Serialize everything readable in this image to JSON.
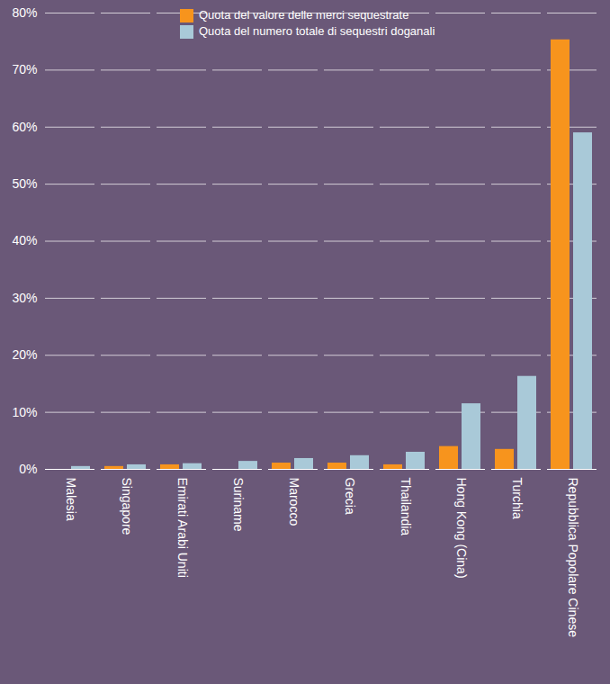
{
  "chart_data": {
    "type": "bar",
    "categories": [
      "Malesia",
      "Singapore",
      "Emirati Arabi Uniti",
      "Suriname",
      "Marocco",
      "Grecia",
      "Thailandia",
      "Hong Kong (Cina)",
      "Turchia",
      "Repubblica Popolare Cinese"
    ],
    "series": [
      {
        "name": "Quota del valore delle merci sequestrate",
        "color": "#f7941d",
        "values": [
          0,
          0.5,
          0.8,
          0,
          1.1,
          1.1,
          0.8,
          4.0,
          3.5,
          75.3
        ]
      },
      {
        "name": "Quota del numero totale di sequestri doganali",
        "color": "#a9c9d8",
        "values": [
          0.5,
          0.8,
          1.0,
          1.4,
          1.9,
          2.4,
          3.0,
          11.5,
          16.3,
          59.0
        ]
      }
    ],
    "ylim": [
      0,
      80
    ],
    "yticks": [
      {
        "value": 0,
        "label": "0%"
      },
      {
        "value": 10,
        "label": "10%"
      },
      {
        "value": 20,
        "label": "20%"
      },
      {
        "value": 30,
        "label": "30%"
      },
      {
        "value": 40,
        "label": "40%"
      },
      {
        "value": 50,
        "label": "50%"
      },
      {
        "value": 60,
        "label": "60%"
      },
      {
        "value": 70,
        "label": "70%"
      },
      {
        "value": 80,
        "label": "80%"
      }
    ],
    "grid": true,
    "legend": "top"
  }
}
